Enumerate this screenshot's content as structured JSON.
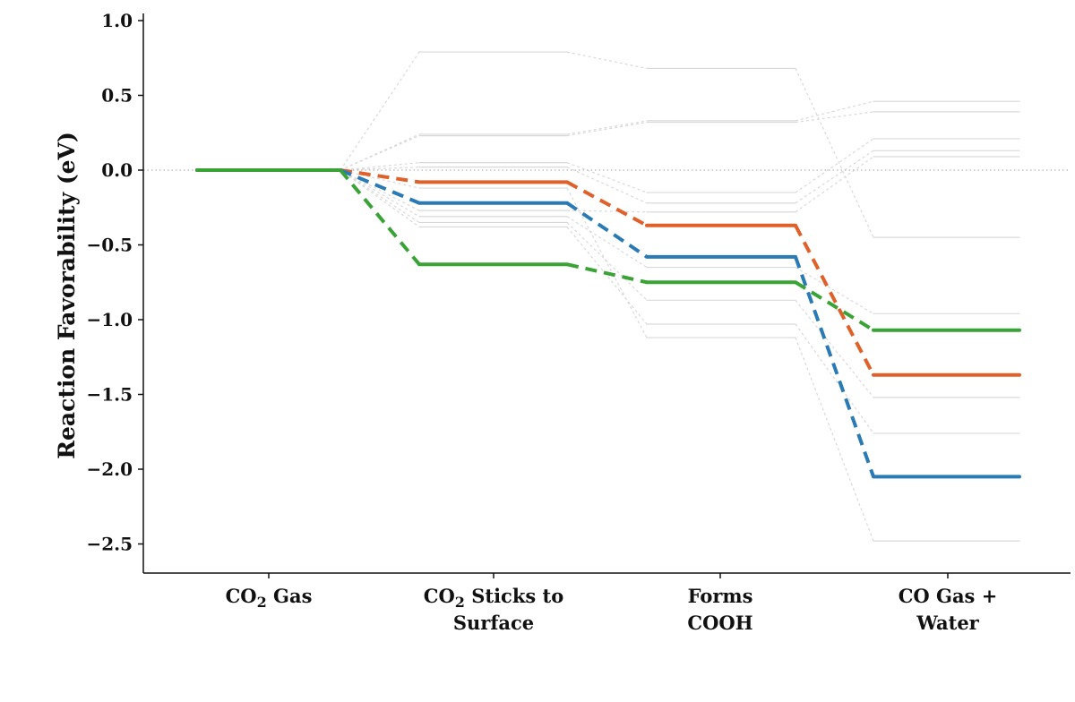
{
  "chart_data": {
    "type": "line",
    "title": "",
    "xlabel": "",
    "ylabel": "Reaction Favorability (eV)",
    "ylim": [
      -2.7,
      1.05
    ],
    "yticks": [
      {
        "value": 1.0,
        "label": "1.0"
      },
      {
        "value": 0.5,
        "label": "0.5"
      },
      {
        "value": 0.0,
        "label": "0.0"
      },
      {
        "value": -0.5,
        "label": "−0.5"
      },
      {
        "value": -1.0,
        "label": "−1.0"
      },
      {
        "value": -1.5,
        "label": "−1.5"
      },
      {
        "value": -2.0,
        "label": "−2.0"
      },
      {
        "value": -2.5,
        "label": "−2.5"
      }
    ],
    "categories": [
      {
        "main": "CO",
        "sub": "2",
        "rest": " Gas",
        "line2": ""
      },
      {
        "main": "CO",
        "sub": "2",
        "rest": " Sticks to",
        "line2": "Surface"
      },
      {
        "main": "Forms",
        "sub": "",
        "rest": "",
        "line2": "COOH"
      },
      {
        "main": "CO Gas +",
        "sub": "",
        "rest": "",
        "line2": "Water"
      }
    ],
    "zero_line": {
      "value": 0.0,
      "style": "dotted"
    },
    "highlight_series": [
      {
        "color": "#e0602a",
        "values": [
          0.0,
          -0.08,
          -0.37,
          -1.37
        ]
      },
      {
        "color": "#2a7ab5",
        "values": [
          0.0,
          -0.22,
          -0.58,
          -2.05
        ]
      },
      {
        "color": "#3aa335",
        "values": [
          0.0,
          -0.63,
          -0.75,
          -1.07
        ]
      }
    ],
    "background_series": {
      "color": "#d9d9d9",
      "values": [
        [
          0.0,
          0.79,
          0.68,
          -0.45
        ],
        [
          0.0,
          0.24,
          0.33,
          0.46
        ],
        [
          0.0,
          0.23,
          0.32,
          0.39
        ],
        [
          0.0,
          0.05,
          -0.15,
          0.21
        ],
        [
          0.0,
          0.02,
          -0.22,
          0.13
        ],
        [
          0.0,
          -0.27,
          -0.28,
          0.09
        ],
        [
          0.0,
          -0.31,
          -0.65,
          -0.96
        ],
        [
          0.0,
          -0.35,
          -0.87,
          -1.52
        ],
        [
          0.0,
          -0.38,
          -1.03,
          -1.76
        ],
        [
          0.0,
          -0.12,
          -1.12,
          -2.48
        ]
      ]
    }
  }
}
